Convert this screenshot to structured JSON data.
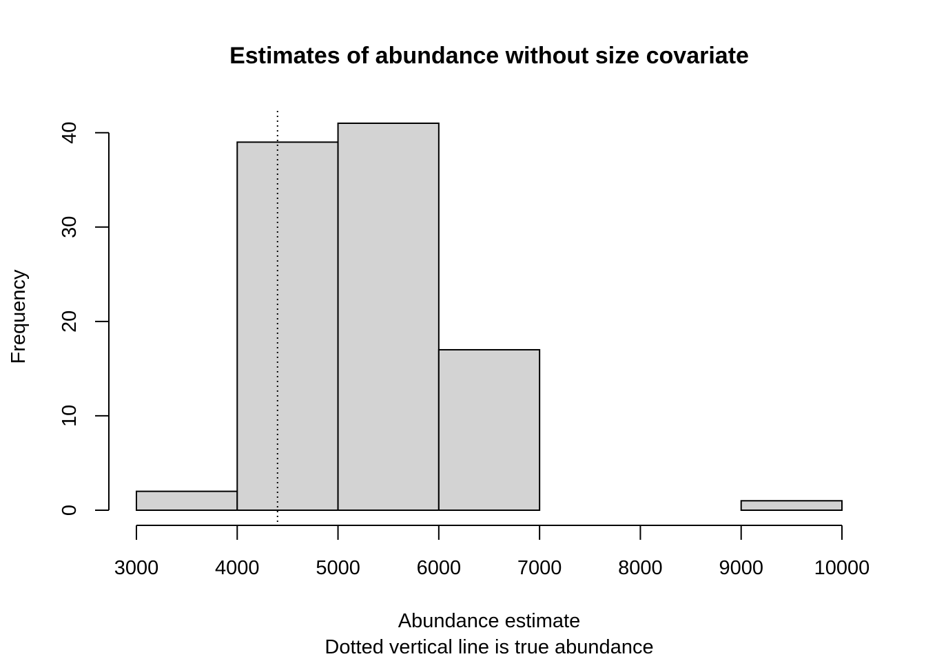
{
  "chart_data": {
    "type": "bar",
    "title": "Estimates of abundance without size covariate",
    "xlabel": "Abundance estimate",
    "sub": "Dotted vertical line is true abundance",
    "ylabel": "Frequency",
    "bins": [
      {
        "start": 3000,
        "end": 4000,
        "count": 2
      },
      {
        "start": 4000,
        "end": 5000,
        "count": 39
      },
      {
        "start": 5000,
        "end": 6000,
        "count": 41
      },
      {
        "start": 6000,
        "end": 7000,
        "count": 17
      },
      {
        "start": 7000,
        "end": 8000,
        "count": 0
      },
      {
        "start": 8000,
        "end": 9000,
        "count": 0
      },
      {
        "start": 9000,
        "end": 10000,
        "count": 1
      }
    ],
    "xlim": [
      3000,
      10000
    ],
    "ylim": [
      0,
      41
    ],
    "xticks": [
      "3000",
      "4000",
      "5000",
      "6000",
      "7000",
      "8000",
      "9000",
      "10000"
    ],
    "yticks": [
      "0",
      "10",
      "20",
      "30",
      "40"
    ],
    "reference_line": {
      "x": 4400,
      "style": "dotted"
    },
    "colors": {
      "bar_fill": "#d3d3d3",
      "bar_stroke": "#000000"
    }
  }
}
